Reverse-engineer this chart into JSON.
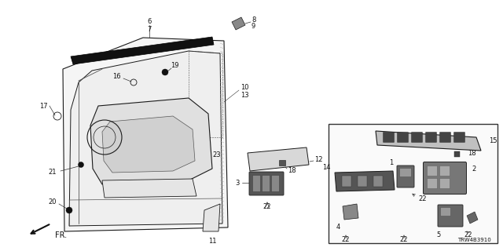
{
  "bg_color": "#ffffff",
  "fig_width": 6.4,
  "fig_height": 3.2,
  "diagram_id": "TRW4B3910",
  "line_color": "#1a1a1a",
  "mid_color": "#555555",
  "light_gray": "#e8e8e8",
  "dark_gray": "#333333",
  "black": "#000000"
}
